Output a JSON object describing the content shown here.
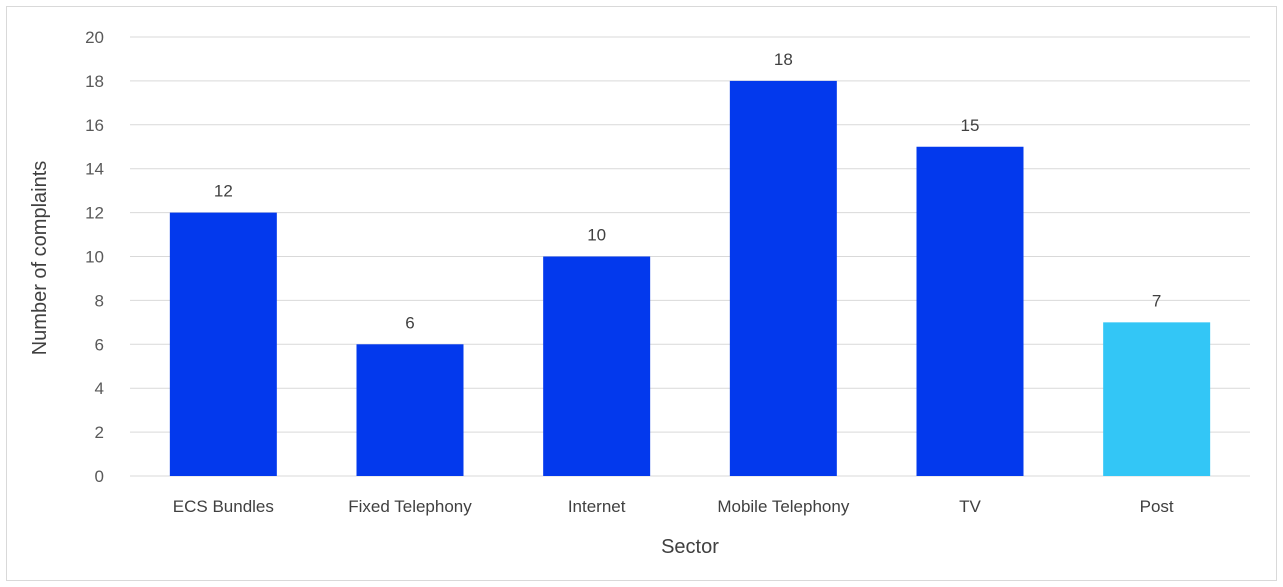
{
  "chart_data": {
    "type": "bar",
    "categories": [
      "ECS Bundles",
      "Fixed Telephony",
      "Internet",
      "Mobile Telephony",
      "TV",
      "Post"
    ],
    "values": [
      12,
      6,
      10,
      18,
      15,
      7
    ],
    "title": "",
    "xlabel": "Sector",
    "ylabel": "Number of complaints",
    "ylim": [
      0,
      20
    ],
    "yticks": [
      0,
      2,
      4,
      6,
      8,
      10,
      12,
      14,
      16,
      18,
      20
    ],
    "grid": true,
    "data_labels": true,
    "colors": {
      "bar": "#0339ed",
      "highlight": "#33c6f6",
      "grid": "#d9d9d9"
    },
    "highlight_categories": [
      "Post"
    ]
  }
}
